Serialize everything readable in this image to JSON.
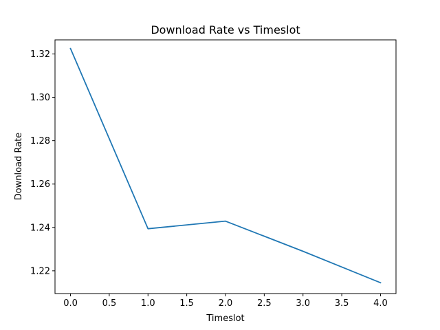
{
  "chart_data": {
    "type": "line",
    "title": "Download Rate vs Timeslot",
    "xlabel": "Timeslot",
    "ylabel": "Download Rate",
    "x": [
      0,
      1,
      2,
      3,
      4
    ],
    "series": [
      {
        "values": [
          1.3225,
          1.2394,
          1.2429,
          1.229,
          1.2145
        ],
        "color": "#1f77b4"
      }
    ],
    "xlim": [
      -0.2,
      4.2
    ],
    "ylim": [
      1.2095,
      1.3265
    ],
    "xticks": [
      0.0,
      0.5,
      1.0,
      1.5,
      2.0,
      2.5,
      3.0,
      3.5,
      4.0
    ],
    "xtick_labels": [
      "0.0",
      "0.5",
      "1.0",
      "1.5",
      "2.0",
      "2.5",
      "3.0",
      "3.5",
      "4.0"
    ],
    "yticks": [
      1.22,
      1.24,
      1.26,
      1.28,
      1.3,
      1.32
    ],
    "ytick_labels": [
      "1.22",
      "1.24",
      "1.26",
      "1.28",
      "1.30",
      "1.32"
    ],
    "grid": false,
    "legend": false
  }
}
